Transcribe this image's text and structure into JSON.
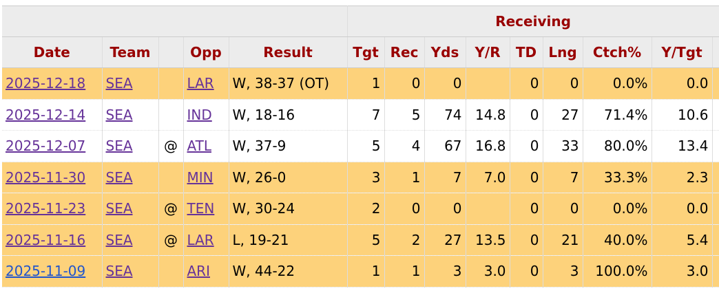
{
  "table": {
    "group_header": "Receiving",
    "columns": [
      "Date",
      "Team",
      null,
      "Opp",
      "Result",
      "Tgt",
      "Rec",
      "Yds",
      "Y/R",
      "TD",
      "Lng",
      "Ctch%",
      "Y/Tgt"
    ],
    "rows": [
      {
        "highlight": true,
        "cells": [
          "2025-12-18",
          "SEA",
          null,
          "LAR",
          "W, 38-37 (OT)",
          "1",
          "0",
          "0",
          null,
          "0",
          "0",
          "0.0%",
          "0.0"
        ]
      },
      {
        "highlight": false,
        "cells": [
          "2025-12-14",
          "SEA",
          null,
          "IND",
          "W, 18-16",
          "7",
          "5",
          "74",
          "14.8",
          "0",
          "27",
          "71.4%",
          "10.6"
        ]
      },
      {
        "highlight": false,
        "cells": [
          "2025-12-07",
          "SEA",
          "@",
          "ATL",
          "W, 37-9",
          "5",
          "4",
          "67",
          "16.8",
          "0",
          "33",
          "80.0%",
          "13.4"
        ]
      },
      {
        "highlight": true,
        "cells": [
          "2025-11-30",
          "SEA",
          null,
          "MIN",
          "W, 26-0",
          "3",
          "1",
          "7",
          "7.0",
          "0",
          "7",
          "33.3%",
          "2.3"
        ]
      },
      {
        "highlight": true,
        "cells": [
          "2025-11-23",
          "SEA",
          "@",
          "TEN",
          "W, 30-24",
          "2",
          "0",
          "0",
          null,
          "0",
          "0",
          "0.0%",
          "0.0"
        ]
      },
      {
        "highlight": true,
        "cells": [
          "2025-11-16",
          "SEA",
          "@",
          "LAR",
          "L, 19-21",
          "5",
          "2",
          "27",
          "13.5",
          "0",
          "21",
          "40.0%",
          "5.4"
        ]
      },
      {
        "highlight": true,
        "cells": [
          "2025-11-09",
          "SEA",
          null,
          "ARI",
          "W, 44-22",
          "1",
          "1",
          "3",
          "3.0",
          "0",
          "3",
          "100.0%",
          "3.0"
        ]
      }
    ]
  }
}
